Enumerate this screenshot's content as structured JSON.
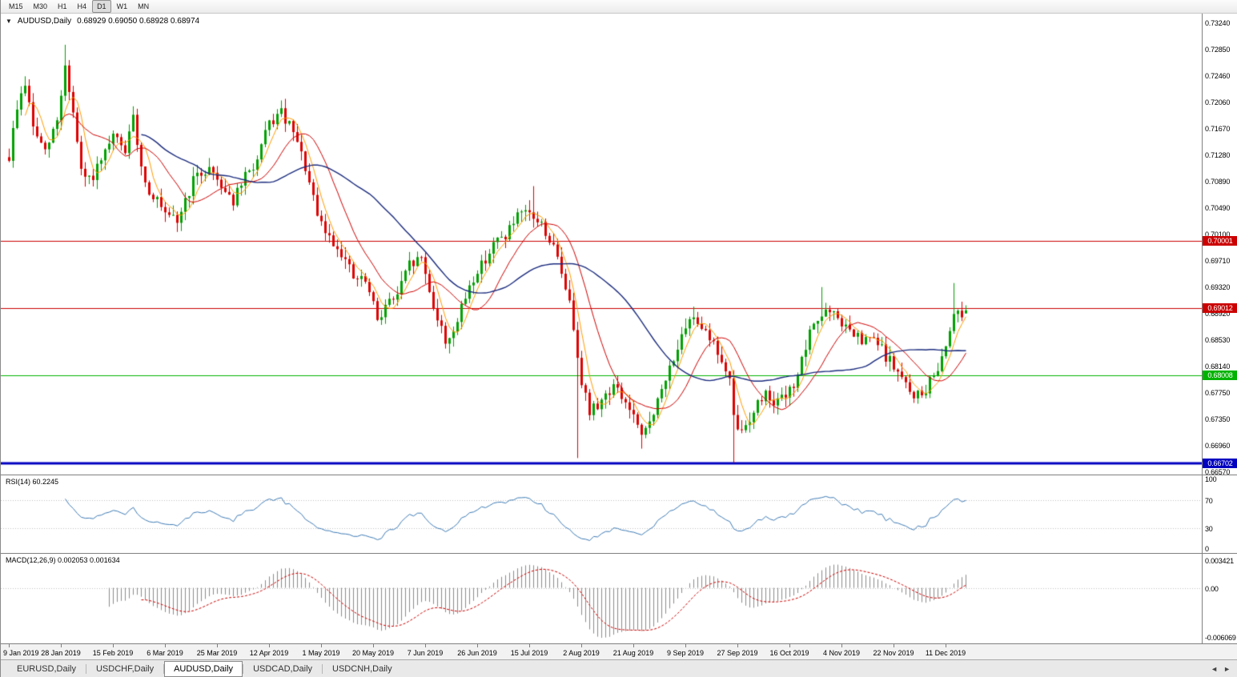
{
  "icons": {
    "collapse": "▼",
    "scroll_left": "◄",
    "scroll_right": "►"
  },
  "toolbar": {
    "timeframes": [
      {
        "label": "M15",
        "active": false
      },
      {
        "label": "M30",
        "active": false
      },
      {
        "label": "H1",
        "active": false
      },
      {
        "label": "H4",
        "active": false
      },
      {
        "label": "D1",
        "active": true
      },
      {
        "label": "W1",
        "active": false
      },
      {
        "label": "MN",
        "active": false
      }
    ]
  },
  "chart": {
    "symbol": "AUDUSD,Daily",
    "ohlc": "0.68929 0.69050 0.68928 0.68974",
    "y_axis_labels": [
      "0.73240",
      "0.72850",
      "0.72460",
      "0.72060",
      "0.71670",
      "0.71280",
      "0.70890",
      "0.70490",
      "0.70100",
      "0.69710",
      "0.69320",
      "0.68920",
      "0.68530",
      "0.68140",
      "0.67750",
      "0.67350",
      "0.66960",
      "0.66570"
    ],
    "y_range": {
      "top": 0.73383,
      "bottom": 0.66535
    },
    "hlines": [
      {
        "price": 0.70001,
        "label": "0.70001",
        "color": "#cc0000",
        "width": 1
      },
      {
        "price": 0.69012,
        "label": "0.69012",
        "color": "#cc0000",
        "width": 1
      },
      {
        "price": 0.68008,
        "label": "0.68008",
        "color": "#00b300",
        "width": 1
      },
      {
        "price": 0.66702,
        "label": "0.66702",
        "color": "#0000c0",
        "width": 3
      }
    ],
    "colors": {
      "up": "#00a000",
      "down": "#dc0000",
      "background": "#ffffff"
    }
  },
  "rsi": {
    "header": "RSI(14) 60.2245",
    "value": 60.2245,
    "color": "#3f7cb6",
    "levels": [
      {
        "value": 100,
        "label": "100"
      },
      {
        "value": 70,
        "label": "70"
      },
      {
        "value": 30,
        "label": "30"
      },
      {
        "value": 0,
        "label": "0"
      }
    ]
  },
  "macd": {
    "header": "MACD(12,26,9) 0.002053 0.001634",
    "macd_value": 0.002053,
    "signal_value": 0.001634,
    "histogram_color": "#8c8c8c",
    "signal_color": "#cc0000",
    "range": {
      "max": 0.003421,
      "min": -0.006069
    },
    "levels": [
      {
        "value": 0.003421,
        "label": "0.003421"
      },
      {
        "value": 0,
        "label": "0.00"
      },
      {
        "value": -0.006069,
        "label": "-0.006069"
      }
    ]
  },
  "x_axis": {
    "labels": [
      "9 Jan 2019",
      "28 Jan 2019",
      "15 Feb 2019",
      "6 Mar 2019",
      "25 Mar 2019",
      "12 Apr 2019",
      "1 May 2019",
      "20 May 2019",
      "7 Jun 2019",
      "26 Jun 2019",
      "15 Jul 2019",
      "2 Aug 2019",
      "21 Aug 2019",
      "9 Sep 2019",
      "27 Sep 2019",
      "16 Oct 2019",
      "4 Nov 2019",
      "22 Nov 2019",
      "11 Dec 2019"
    ],
    "label_every_bars": 13
  },
  "tabs": {
    "items": [
      {
        "label": "EURUSD,Daily",
        "active": false
      },
      {
        "label": "USDCHF,Daily",
        "active": false
      },
      {
        "label": "AUDUSD,Daily",
        "active": true
      },
      {
        "label": "USDCAD,Daily",
        "active": false
      },
      {
        "label": "USDCNH,Daily",
        "active": false
      }
    ]
  },
  "chart_data": {
    "type": "candlestick",
    "symbol": "AUDUSD",
    "timeframe": "Daily",
    "title": "AUDUSD,Daily",
    "bars": 240,
    "seed": 9,
    "noise": 0.0018,
    "wick": 0.0015,
    "last_bar": {
      "open": 0.68929,
      "high": 0.6905,
      "low": 0.68928,
      "close": 0.68974
    },
    "horizontal_levels": [
      0.70001,
      0.69012,
      0.68008,
      0.66702
    ],
    "moving_averages": [
      {
        "period": 5,
        "color": "#ff9c00",
        "width": 1
      },
      {
        "period": 13,
        "color": "#d00000",
        "width": 1
      },
      {
        "period": 34,
        "color": "#1b2c7e",
        "width": 1.4
      }
    ],
    "anchors": [
      [
        0,
        0.7125
      ],
      [
        2,
        0.72
      ],
      [
        4,
        0.7235
      ],
      [
        6,
        0.717
      ],
      [
        9,
        0.713
      ],
      [
        12,
        0.718
      ],
      [
        14,
        0.726
      ],
      [
        16,
        0.719
      ],
      [
        18,
        0.71
      ],
      [
        20,
        0.709
      ],
      [
        23,
        0.7115
      ],
      [
        26,
        0.7155
      ],
      [
        29,
        0.7135
      ],
      [
        31,
        0.718
      ],
      [
        34,
        0.7085
      ],
      [
        37,
        0.706
      ],
      [
        39,
        0.7035
      ],
      [
        42,
        0.703
      ],
      [
        46,
        0.709
      ],
      [
        50,
        0.711
      ],
      [
        53,
        0.7085
      ],
      [
        56,
        0.706
      ],
      [
        59,
        0.7095
      ],
      [
        62,
        0.712
      ],
      [
        65,
        0.7175
      ],
      [
        68,
        0.719
      ],
      [
        71,
        0.716
      ],
      [
        74,
        0.711
      ],
      [
        77,
        0.7035
      ],
      [
        80,
        0.7005
      ],
      [
        83,
        0.6985
      ],
      [
        86,
        0.6945
      ],
      [
        89,
        0.694
      ],
      [
        92,
        0.6885
      ],
      [
        94,
        0.6905
      ],
      [
        97,
        0.692
      ],
      [
        100,
        0.6965
      ],
      [
        103,
        0.6975
      ],
      [
        106,
        0.6905
      ],
      [
        109,
        0.685
      ],
      [
        112,
        0.688
      ],
      [
        115,
        0.6935
      ],
      [
        118,
        0.6965
      ],
      [
        121,
        0.6995
      ],
      [
        124,
        0.701
      ],
      [
        127,
        0.7035
      ],
      [
        130,
        0.704
      ],
      [
        133,
        0.7025
      ],
      [
        136,
        0.699
      ],
      [
        139,
        0.6935
      ],
      [
        141,
        0.6875
      ],
      [
        143,
        0.6795
      ],
      [
        145,
        0.6745
      ],
      [
        148,
        0.6765
      ],
      [
        151,
        0.6785
      ],
      [
        154,
        0.676
      ],
      [
        156,
        0.674
      ],
      [
        158,
        0.6705
      ],
      [
        160,
        0.6735
      ],
      [
        163,
        0.6775
      ],
      [
        166,
        0.683
      ],
      [
        169,
        0.6865
      ],
      [
        171,
        0.689
      ],
      [
        174,
        0.687
      ],
      [
        177,
        0.6835
      ],
      [
        180,
        0.679
      ],
      [
        181,
        0.6735
      ],
      [
        183,
        0.6715
      ],
      [
        186,
        0.675
      ],
      [
        189,
        0.6775
      ],
      [
        192,
        0.676
      ],
      [
        195,
        0.6775
      ],
      [
        198,
        0.682
      ],
      [
        201,
        0.688
      ],
      [
        204,
        0.6895
      ],
      [
        207,
        0.6885
      ],
      [
        210,
        0.6865
      ],
      [
        213,
        0.685
      ],
      [
        216,
        0.6855
      ],
      [
        219,
        0.683
      ],
      [
        222,
        0.6805
      ],
      [
        225,
        0.6775
      ],
      [
        228,
        0.677
      ],
      [
        231,
        0.68
      ],
      [
        234,
        0.6845
      ],
      [
        236,
        0.69
      ],
      [
        238,
        0.689
      ],
      [
        239,
        0.68974
      ]
    ],
    "spike_highs": [
      [
        14,
        0.7292
      ],
      [
        131,
        0.7082
      ],
      [
        171,
        0.6903
      ],
      [
        203,
        0.6932
      ],
      [
        236,
        0.6938
      ]
    ],
    "spike_lows": [
      [
        142,
        0.6678
      ],
      [
        158,
        0.6692
      ],
      [
        181,
        0.6671
      ]
    ]
  }
}
